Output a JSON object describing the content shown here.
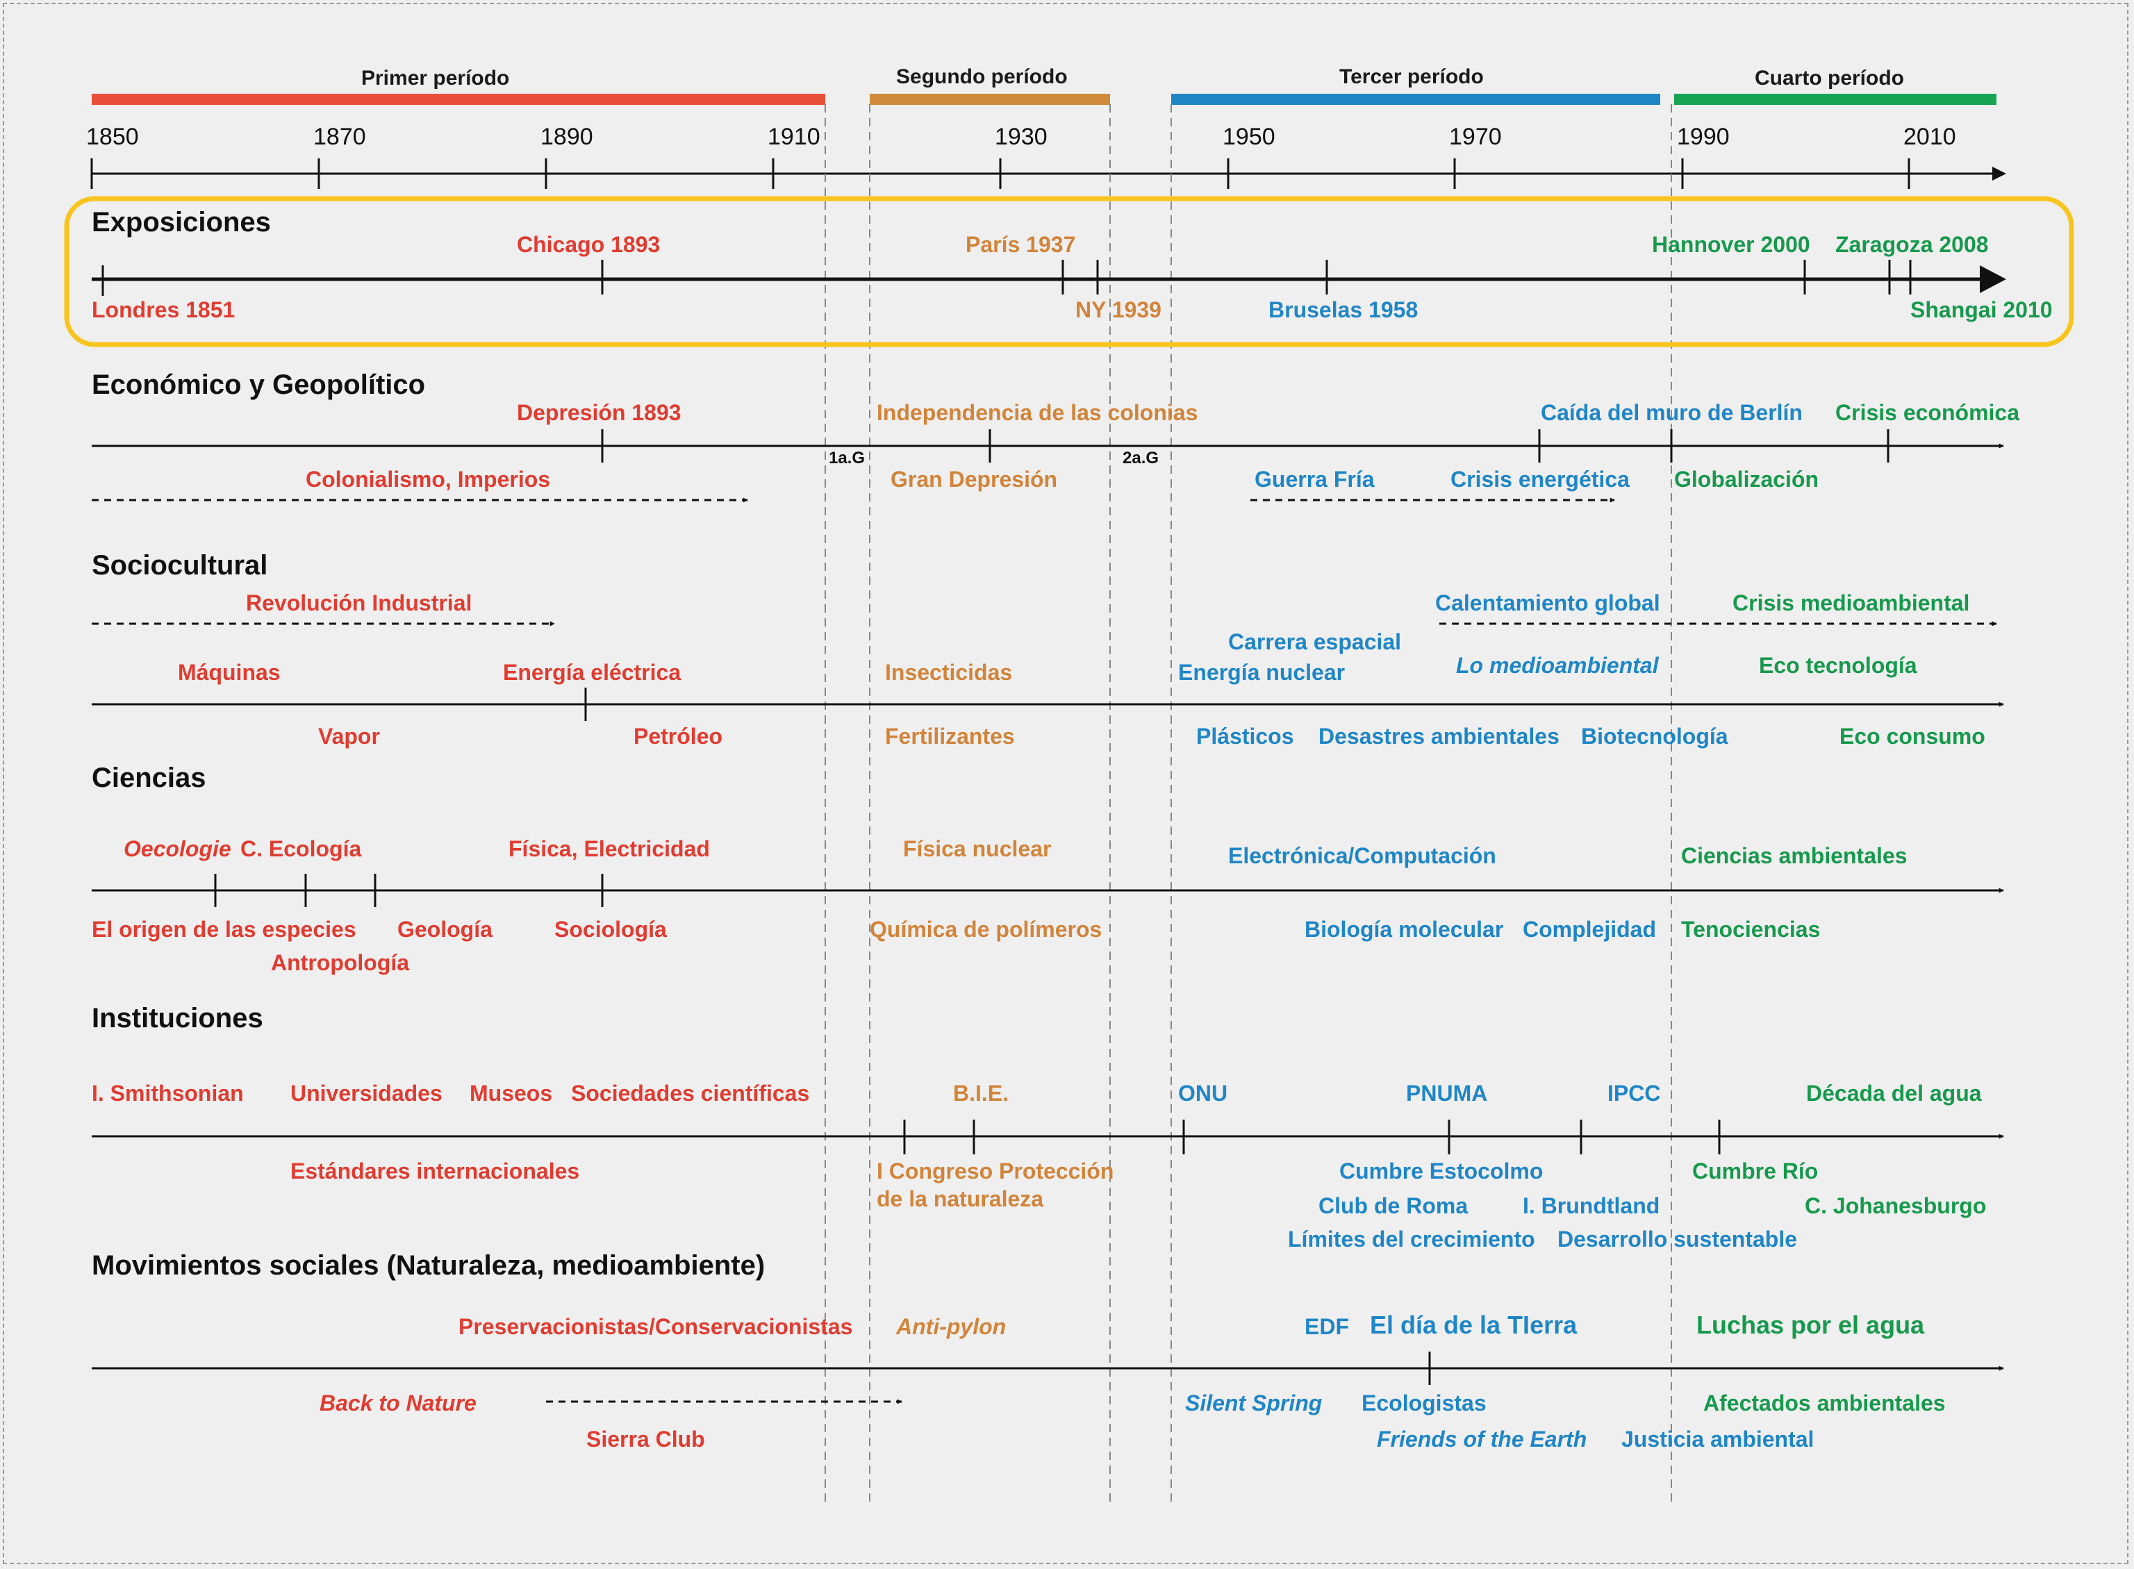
{
  "colors": {
    "red": "#e03c31",
    "orange": "#d1843a",
    "blue": "#1f86c6",
    "green": "#17994d",
    "highlight": "#f7c51e",
    "axis": "#111111"
  },
  "periods": [
    "Primer período",
    "Segundo período",
    "Tercer período",
    "Cuarto período"
  ],
  "years": [
    "1850",
    "1870",
    "1890",
    "1910",
    "1930",
    "1950",
    "1970",
    "1990",
    "2010"
  ],
  "war_markers": [
    "1a.G",
    "2a.G"
  ],
  "sections": {
    "exposiciones": {
      "title": "Exposiciones",
      "items": [
        "Chicago 1893",
        "París 1937",
        "Hannover 2000",
        "Zaragoza 2008",
        "Londres 1851",
        "NY 1939",
        "Bruselas 1958",
        "Shangai 2010"
      ]
    },
    "economico": {
      "title": "Económico y Geopolítico",
      "items": [
        "Depresión 1893",
        "Independencia de las colonias",
        "Caída del muro de Berlín",
        "Crisis económica",
        "Colonialismo, Imperios",
        "Gran Depresión",
        "Guerra Fría",
        "Crisis energética",
        "Globalización"
      ]
    },
    "sociocultural": {
      "title": "Sociocultural",
      "items": [
        "Revolución Industrial",
        "Calentamiento global",
        "Crisis medioambiental",
        "Carrera espacial",
        "Máquinas",
        "Energía eléctrica",
        "Insecticidas",
        "Energía nuclear",
        "Lo medioambiental",
        "Eco tecnología",
        "Vapor",
        "Petróleo",
        "Fertilizantes",
        "Plásticos",
        "Desastres ambientales",
        "Biotecnología",
        "Eco consumo"
      ]
    },
    "ciencias": {
      "title": "Ciencias",
      "items": [
        "Oecologie",
        "C. Ecología",
        "Física, Electricidad",
        "Física nuclear",
        "Electrónica/Computación",
        "Ciencias ambientales",
        "El origen de las especies",
        "Geología",
        "Sociología",
        "Antropología",
        "Química de polímeros",
        "Biología molecular",
        "Complejidad",
        "Tenociencias"
      ]
    },
    "instituciones": {
      "title": "Instituciones",
      "items": [
        "I. Smithsonian",
        "Universidades",
        "Museos",
        "Sociedades científicas",
        "B.I.E.",
        "ONU",
        "PNUMA",
        "IPCC",
        "Década del agua",
        "Estándares internacionales",
        "I Congreso Protección",
        "de la naturaleza",
        "Cumbre Estocolmo",
        "Club de Roma",
        "Límites del crecimiento",
        "I. Brundtland",
        "Desarrollo sustentable",
        "Cumbre Río",
        "C. Johanesburgo"
      ]
    },
    "movimientos": {
      "title": "Movimientos sociales (Naturaleza, medioambiente)",
      "items": [
        "Preservacionistas/Conservacionistas",
        "Anti-pylon",
        "EDF",
        "El día de la TIerra",
        "Luchas por el agua",
        "Back to Nature",
        "Silent Spring",
        "Ecologistas",
        "Afectados ambientales",
        "Sierra Club",
        "Friends of the Earth",
        "Justicia ambiental"
      ]
    }
  }
}
